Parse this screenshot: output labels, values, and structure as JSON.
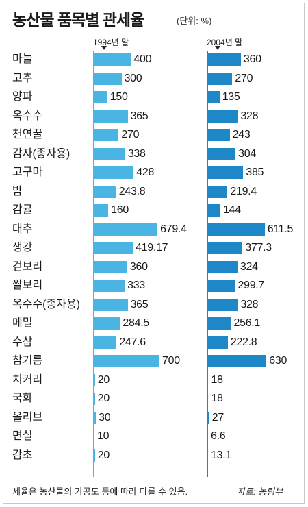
{
  "title": "농산물 품목별 관세율",
  "unit": "(단위: %)",
  "footer_note": "세율은 농산물의 가공도 등에 따라 다를 수 있음.",
  "footer_source": "자료: 농림부",
  "colors": {
    "series_1994": "#4ab5e2",
    "series_2004": "#1e87c8"
  },
  "chart_data": {
    "type": "bar",
    "orientation": "horizontal",
    "categories": [
      "마늘",
      "고추",
      "양파",
      "옥수수",
      "천연꿀",
      "감자(종자용)",
      "고구마",
      "밤",
      "감귤",
      "대추",
      "생강",
      "겉보리",
      "쌀보리",
      "옥수수(종자용)",
      "메밀",
      "수삼",
      "참기름",
      "치커리",
      "국화",
      "올리브",
      "면실",
      "감초"
    ],
    "series": [
      {
        "name": "1994년 말",
        "values": [
          "400",
          "300",
          "150",
          "365",
          "270",
          "338",
          "428",
          "243.8",
          "160",
          "679.4",
          "419.17",
          "360",
          "333",
          "365",
          "284.5",
          "247.6",
          "700",
          "20",
          "20",
          "30",
          "10",
          "20"
        ]
      },
      {
        "name": "2004년 말",
        "values": [
          "360",
          "270",
          "135",
          "328",
          "243",
          "304",
          "385",
          "219.4",
          "144",
          "611.5",
          "377.3",
          "324",
          "299.7",
          "328",
          "256.1",
          "222.8",
          "630",
          "18",
          "18",
          "27",
          "6.6",
          "13.1"
        ]
      }
    ],
    "xlim": [
      0,
      700
    ]
  }
}
